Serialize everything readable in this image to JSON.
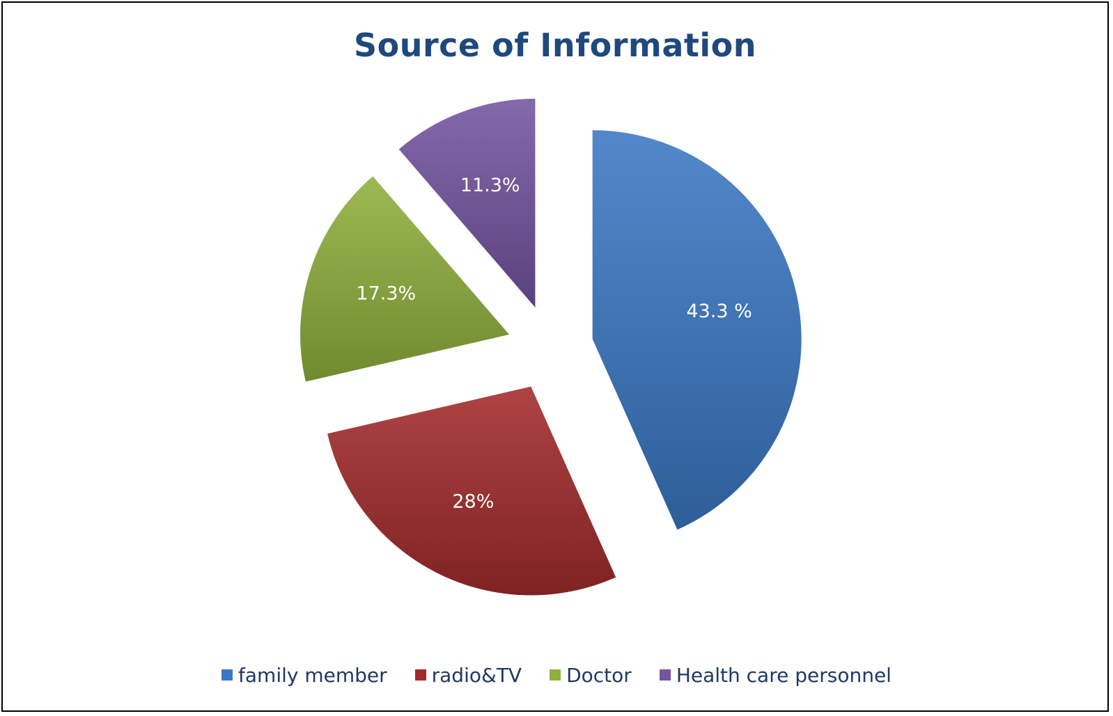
{
  "chart_data": {
    "type": "pie",
    "title": "Source of Information",
    "categories": [
      "family member",
      "radio&TV",
      "Doctor",
      "Health care personnel"
    ],
    "values": [
      43.3,
      28,
      17.3,
      11.3
    ],
    "labels": [
      "43.3 %",
      "28%",
      "17.3%",
      "11.3%"
    ],
    "colors": [
      "#3a78c4",
      "#a32b2b",
      "#8fb13c",
      "#7355a0"
    ],
    "exploded": true,
    "legend_position": "bottom"
  }
}
